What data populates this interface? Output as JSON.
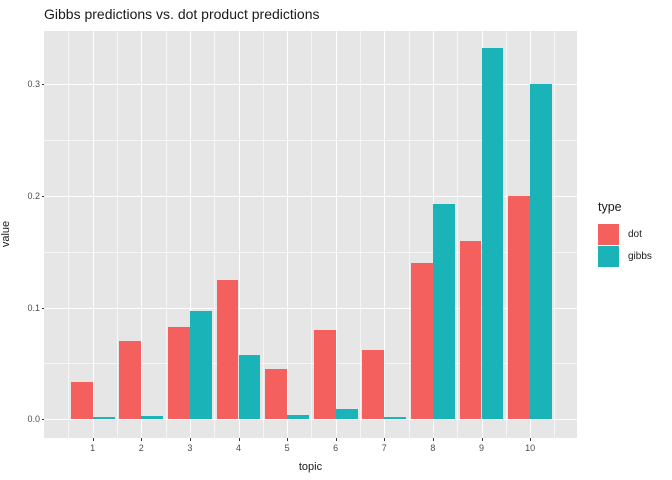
{
  "title": "Gibbs predictions vs. dot product predictions",
  "chart_data": {
    "type": "bar",
    "grouping": "dodged",
    "title": "Gibbs predictions vs. dot product predictions",
    "xlabel": "topic",
    "ylabel": "value",
    "categories": [
      "1",
      "2",
      "3",
      "4",
      "5",
      "6",
      "7",
      "8",
      "9",
      "10"
    ],
    "series": [
      {
        "name": "dot",
        "color": "#F3605D",
        "values": [
          0.033,
          0.07,
          0.083,
          0.125,
          0.045,
          0.08,
          0.062,
          0.14,
          0.16,
          0.2
        ]
      },
      {
        "name": "gibbs",
        "color": "#1AB3B8",
        "values": [
          0.002,
          0.003,
          0.097,
          0.058,
          0.004,
          0.009,
          0.002,
          0.193,
          0.332,
          0.3
        ]
      }
    ],
    "y_tick_labels": [
      "0.0",
      "0.1",
      "0.2",
      "0.3"
    ],
    "y_tick_values": [
      0,
      0.1,
      0.2,
      0.3
    ],
    "y_minor_values": [
      0.05,
      0.15,
      0.25
    ],
    "ylim": [
      -0.017,
      0.348
    ],
    "grid": "white major and minor gridlines on gray panel",
    "legend_position": "right",
    "panel_background": "#E6E6E6"
  },
  "legend": {
    "title": "type",
    "items": [
      {
        "label": "dot",
        "color": "#F3605D"
      },
      {
        "label": "gibbs",
        "color": "#1AB3B8"
      }
    ]
  }
}
